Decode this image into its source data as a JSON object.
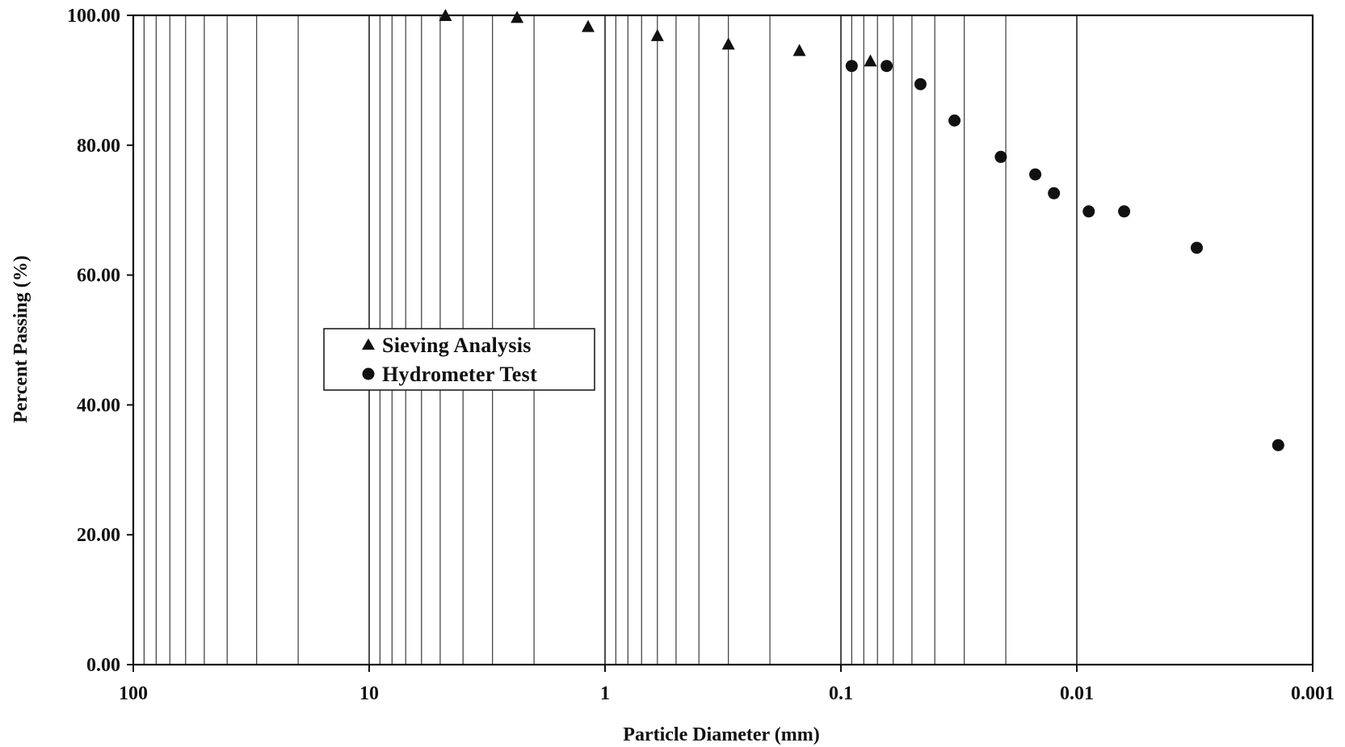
{
  "chart_data": {
    "type": "scatter",
    "title": "",
    "xlabel": "Particle Diameter (mm)",
    "ylabel": "Percent Passing (%)",
    "x_scale": "log",
    "x_reversed": true,
    "xlim": [
      100,
      0.001
    ],
    "ylim": [
      0,
      100
    ],
    "x_ticks": [
      100,
      10,
      1,
      0.1,
      0.01,
      0.001
    ],
    "x_tick_labels": [
      "100",
      "10",
      "1",
      "0.1",
      "0.01",
      "0.001"
    ],
    "y_ticks": [
      0,
      20,
      40,
      60,
      80,
      100
    ],
    "y_tick_labels": [
      "0.00",
      "20.00",
      "40.00",
      "60.00",
      "80.00",
      "100.00"
    ],
    "grid": "vertical log grid lines",
    "legend_position": "left-center",
    "series": [
      {
        "name": "Sieving Analysis",
        "marker": "triangle",
        "color": "#111111",
        "points": [
          {
            "x": 4.75,
            "y": 100.0
          },
          {
            "x": 2.36,
            "y": 99.7
          },
          {
            "x": 1.18,
            "y": 98.3
          },
          {
            "x": 0.6,
            "y": 96.9
          },
          {
            "x": 0.3,
            "y": 95.6
          },
          {
            "x": 0.15,
            "y": 94.6
          },
          {
            "x": 0.075,
            "y": 93.0
          }
        ]
      },
      {
        "name": "Hydrometer Test",
        "marker": "circle",
        "color": "#111111",
        "points": [
          {
            "x": 0.09,
            "y": 92.2
          },
          {
            "x": 0.064,
            "y": 92.2
          },
          {
            "x": 0.046,
            "y": 89.4
          },
          {
            "x": 0.033,
            "y": 83.8
          },
          {
            "x": 0.021,
            "y": 78.2
          },
          {
            "x": 0.015,
            "y": 75.5
          },
          {
            "x": 0.0125,
            "y": 72.6
          },
          {
            "x": 0.0089,
            "y": 69.8
          },
          {
            "x": 0.0063,
            "y": 69.8
          },
          {
            "x": 0.0031,
            "y": 64.2
          },
          {
            "x": 0.0014,
            "y": 33.8
          }
        ]
      }
    ]
  }
}
